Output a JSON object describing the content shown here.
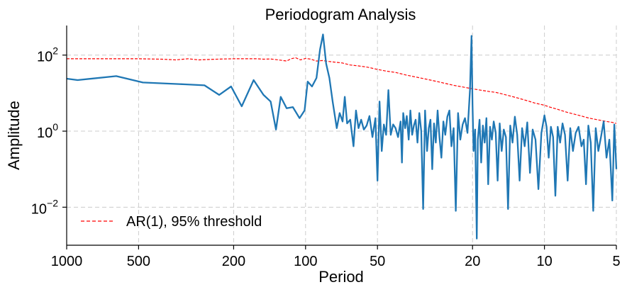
{
  "chart_data": {
    "type": "line",
    "title": "Periodogram Analysis",
    "xlabel": "Period",
    "ylabel": "Amplitude",
    "x_scale": "log",
    "x_inverted": true,
    "y_scale": "log",
    "xlim": [
      1000,
      5
    ],
    "ylim": [
      0.001,
      600
    ],
    "xticks": [
      1000,
      500,
      200,
      100,
      50,
      20,
      10,
      5
    ],
    "xtick_labels": [
      "1000",
      "500",
      "200",
      "100",
      "50",
      "20",
      "10",
      "5"
    ],
    "yticks": [
      0.01,
      1,
      100
    ],
    "ytick_base": [
      "10",
      "10",
      "10"
    ],
    "ytick_exponents": [
      "−2",
      "0",
      "2"
    ],
    "grid": true,
    "legend": {
      "position": "lower-left"
    },
    "series": [
      {
        "name": "",
        "color": "#1f77b4",
        "style": "solid",
        "x": [
          1000,
          900,
          620,
          480,
          320,
          265,
          230,
          205,
          185,
          165,
          150,
          140,
          133,
          127,
          120,
          113,
          106,
          101,
          98,
          94,
          90,
          87,
          84.5,
          82,
          79.5,
          77,
          74,
          72,
          70,
          68.5,
          67,
          65,
          63,
          61.5,
          60,
          58.5,
          57,
          55.5,
          54,
          52.5,
          51,
          50,
          49,
          48,
          47,
          46,
          45,
          44,
          43,
          42,
          41,
          40,
          39.5,
          39,
          38.3,
          37.7,
          37,
          36.4,
          35.8,
          35.2,
          34.6,
          34,
          33.4,
          32.8,
          32.2,
          31.6,
          31,
          30.5,
          30,
          29.5,
          29,
          28.5,
          28,
          27.5,
          27,
          26.5,
          26,
          25.5,
          25,
          24.5,
          24,
          23.5,
          23,
          22.5,
          22,
          21.5,
          21,
          20.5,
          20.2,
          20,
          19.8,
          19.5,
          19.2,
          19,
          18.7,
          18.4,
          18.1,
          17.8,
          17.5,
          17.2,
          16.9,
          16.6,
          16.3,
          16,
          15.7,
          15.4,
          15.1,
          14.8,
          14.5,
          14.2,
          13.9,
          13.6,
          13.3,
          13,
          12.7,
          12.4,
          12.1,
          11.8,
          11.5,
          11.2,
          10.9,
          10.6,
          10.3,
          10,
          9.8,
          9.6,
          9.4,
          9.2,
          9,
          8.8,
          8.6,
          8.4,
          8.2,
          8,
          7.8,
          7.6,
          7.4,
          7.2,
          7,
          6.85,
          6.7,
          6.55,
          6.4,
          6.25,
          6.1,
          5.95,
          5.8,
          5.65,
          5.5,
          5.35,
          5.2,
          5.1,
          5
        ],
        "y": [
          24,
          22,
          28,
          19,
          17,
          16,
          9,
          15,
          4.5,
          22,
          9,
          6,
          1.1,
          8,
          4,
          4.3,
          2.2,
          3.5,
          20,
          15,
          25,
          140,
          350,
          60,
          25,
          6,
          1.2,
          3,
          1.8,
          8,
          1.6,
          2,
          0.4,
          3.5,
          1.2,
          2,
          1.1,
          1.4,
          2.5,
          0.7,
          2.2,
          0.05,
          6,
          0.3,
          1.5,
          0.8,
          12,
          0.8,
          1.5,
          1.2,
          0.7,
          1.8,
          0.15,
          3,
          1.2,
          2.5,
          0.6,
          3.5,
          0.8,
          1.4,
          2,
          0.5,
          3,
          1,
          0.009,
          3.5,
          0.3,
          1.2,
          2,
          0.1,
          1.6,
          0.5,
          3.5,
          0.7,
          0.2,
          1.8,
          0.8,
          2.4,
          3.5,
          0.4,
          1.2,
          0.008,
          3,
          0.6,
          1.5,
          2.2,
          0.9,
          12,
          320,
          5,
          0.3,
          1.1,
          0.0015,
          0.6,
          2,
          0.15,
          1.4,
          0.5,
          2.2,
          0.04,
          1.3,
          0.6,
          1.8,
          0.9,
          0.05,
          1.6,
          0.3,
          1.1,
          0.7,
          0.009,
          1.4,
          0.5,
          2.4,
          0.8,
          0.05,
          1.2,
          0.4,
          1.7,
          0.08,
          1.1,
          0.6,
          0.03,
          0.9,
          2.6,
          1.3,
          0.2,
          1.3,
          0.7,
          0.02,
          1.3,
          0.5,
          1.6,
          0.8,
          0.05,
          1.2,
          0.3,
          0.9,
          1.3,
          0.4,
          0.6,
          0.04,
          1.4,
          0.5,
          0.008,
          1.2,
          0.3,
          0.7,
          1.8,
          0.2,
          0.6,
          0.015,
          1.5,
          0.1
        ]
      },
      {
        "name": "AR(1), 95% threshold",
        "color": "#ff0000",
        "style": "dashed",
        "x": [
          1000,
          800,
          600,
          500,
          400,
          350,
          310,
          280,
          250,
          220,
          200,
          180,
          160,
          150,
          140,
          130,
          120,
          115,
          110,
          105,
          100,
          95,
          90,
          85,
          80,
          75,
          70,
          65,
          60,
          55,
          50,
          46,
          42,
          38,
          35,
          32,
          30,
          28,
          26,
          24,
          22,
          20,
          18.5,
          17,
          16,
          15,
          14,
          13,
          12,
          11,
          10,
          9.5,
          9,
          8.5,
          8,
          7.5,
          7,
          6.5,
          6,
          5.5,
          5.2,
          5
        ],
        "y": [
          80,
          80,
          80,
          80,
          78,
          75,
          80,
          75,
          77,
          79,
          80,
          80,
          80,
          78,
          79,
          75,
          70,
          80,
          85,
          75,
          82,
          78,
          70,
          72,
          68,
          65,
          62,
          55,
          52,
          48,
          42,
          38,
          35,
          30,
          27,
          24,
          22,
          20,
          18,
          16,
          14.5,
          13,
          12,
          11,
          10.5,
          9.5,
          8.5,
          7.5,
          6.5,
          5.5,
          4.8,
          4.3,
          3.9,
          3.5,
          3.1,
          2.8,
          2.5,
          2.2,
          2,
          1.8,
          1.7,
          1.6
        ]
      }
    ]
  }
}
